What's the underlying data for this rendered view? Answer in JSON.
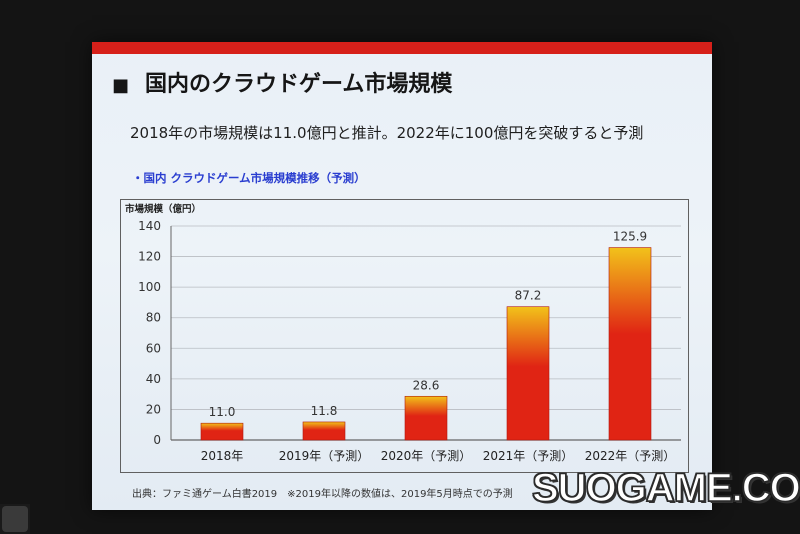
{
  "slide": {
    "heading_bullet": "■",
    "heading": "国内のクラウドゲーム市場規模",
    "lead": "2018年の市場規模は11.0億円と推計。2022年に100億円を突破すると予測",
    "subhead": "・国内 クラウドゲーム市場規模推移（予測）",
    "footnote_source": "出典：ファミ通ゲーム白書2019",
    "footnote_note": "※2019年以降の数値は、2019年5月時点での予測",
    "accent_color": "#d6201a"
  },
  "chart_data": {
    "type": "bar",
    "title": "",
    "ylabel": "市場規模（億円）",
    "xlabel": "",
    "categories": [
      "2018年",
      "2019年（予測）",
      "2020年（予測）",
      "2021年（予測）",
      "2022年（予測）"
    ],
    "values": [
      11.0,
      11.8,
      28.6,
      87.2,
      125.9
    ],
    "data_labels": [
      "11.0",
      "11.8",
      "28.6",
      "87.2",
      "125.9"
    ],
    "ylim": [
      0,
      140
    ],
    "yticks": [
      0,
      20,
      40,
      60,
      80,
      100,
      120,
      140
    ],
    "grid": true,
    "bar_colors": {
      "bottom": "#e02414",
      "top": "#f2c21a"
    }
  },
  "watermark": "SUOGAME.COM"
}
